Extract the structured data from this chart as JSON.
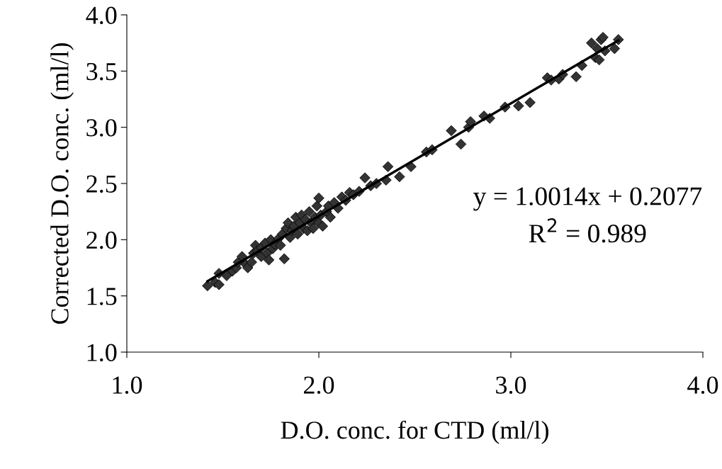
{
  "chart_data": {
    "type": "scatter",
    "xlabel": "D.O. conc. for CTD (ml/l)",
    "ylabel": "Corrected D.O. conc. (ml/l)",
    "xlim": [
      1,
      4
    ],
    "ylim": [
      1,
      4
    ],
    "xticks": [
      {
        "value": 1,
        "label": "1.0"
      },
      {
        "value": 2,
        "label": "2.0"
      },
      {
        "value": 3,
        "label": "3.0"
      },
      {
        "value": 4,
        "label": "4.0"
      }
    ],
    "yticks": [
      {
        "value": 1,
        "label": "1.0"
      },
      {
        "value": 1.5,
        "label": "1.5"
      },
      {
        "value": 2,
        "label": "2.0"
      },
      {
        "value": 2.5,
        "label": "2.5"
      },
      {
        "value": 3,
        "label": "3.0"
      },
      {
        "value": 3.5,
        "label": "3.5"
      },
      {
        "value": 4,
        "label": "4.0"
      }
    ],
    "grid": false,
    "legend": false,
    "marker": "diamond",
    "annotations": [
      "y = 1.0014x + 0.2077",
      "R$^{2}$ = 0.989"
    ],
    "series": [
      {
        "color": "#333333",
        "x": [
          1.42,
          1.46,
          1.48,
          1.48,
          1.52,
          1.55,
          1.57,
          1.58,
          1.6,
          1.62,
          1.63,
          1.65,
          1.66,
          1.67,
          1.68,
          1.7,
          1.7,
          1.72,
          1.73,
          1.74,
          1.75,
          1.76,
          1.77,
          1.79,
          1.8,
          1.81,
          1.82,
          1.83,
          1.84,
          1.85,
          1.86,
          1.87,
          1.88,
          1.89,
          1.9,
          1.91,
          1.92,
          1.93,
          1.94,
          1.95,
          1.96,
          1.97,
          1.98,
          1.99,
          2.0,
          2.0,
          2.01,
          2.02,
          2.04,
          2.05,
          2.06,
          2.08,
          2.1,
          2.12,
          2.14,
          2.16,
          2.18,
          2.21,
          2.24,
          2.27,
          2.3,
          2.35,
          2.36,
          2.42,
          2.48,
          2.56,
          2.59,
          2.69,
          2.74,
          2.78,
          2.79,
          2.86,
          2.89,
          2.97,
          3.04,
          3.1,
          3.19,
          3.21,
          3.25,
          3.27,
          3.34,
          3.37,
          3.42,
          3.44,
          3.45,
          3.46,
          3.47,
          3.48,
          3.49,
          3.54,
          3.56
        ],
        "values": [
          1.59,
          1.62,
          1.6,
          1.7,
          1.68,
          1.72,
          1.75,
          1.8,
          1.85,
          1.78,
          1.75,
          1.8,
          1.88,
          1.95,
          1.9,
          1.85,
          1.93,
          1.97,
          1.88,
          1.82,
          2.0,
          1.92,
          1.96,
          2.01,
          1.95,
          2.05,
          1.83,
          2.1,
          2.15,
          2.02,
          2.08,
          2.12,
          2.2,
          2.05,
          2.15,
          2.22,
          2.1,
          2.18,
          2.08,
          2.25,
          2.15,
          2.1,
          2.2,
          2.3,
          2.37,
          2.15,
          2.22,
          2.12,
          2.25,
          2.3,
          2.2,
          2.33,
          2.28,
          2.38,
          2.35,
          2.42,
          2.4,
          2.43,
          2.55,
          2.48,
          2.5,
          2.53,
          2.65,
          2.56,
          2.65,
          2.78,
          2.8,
          2.97,
          2.85,
          3.0,
          3.05,
          3.1,
          3.08,
          3.18,
          3.19,
          3.22,
          3.44,
          3.42,
          3.43,
          3.47,
          3.45,
          3.55,
          3.75,
          3.62,
          3.7,
          3.6,
          3.78,
          3.8,
          3.68,
          3.7,
          3.78
        ]
      },
      {
        "type": "line",
        "color": "#000000",
        "marker": "none",
        "x": [
          1.42,
          3.56
        ],
        "values": [
          1.63,
          3.773
        ]
      }
    ]
  }
}
